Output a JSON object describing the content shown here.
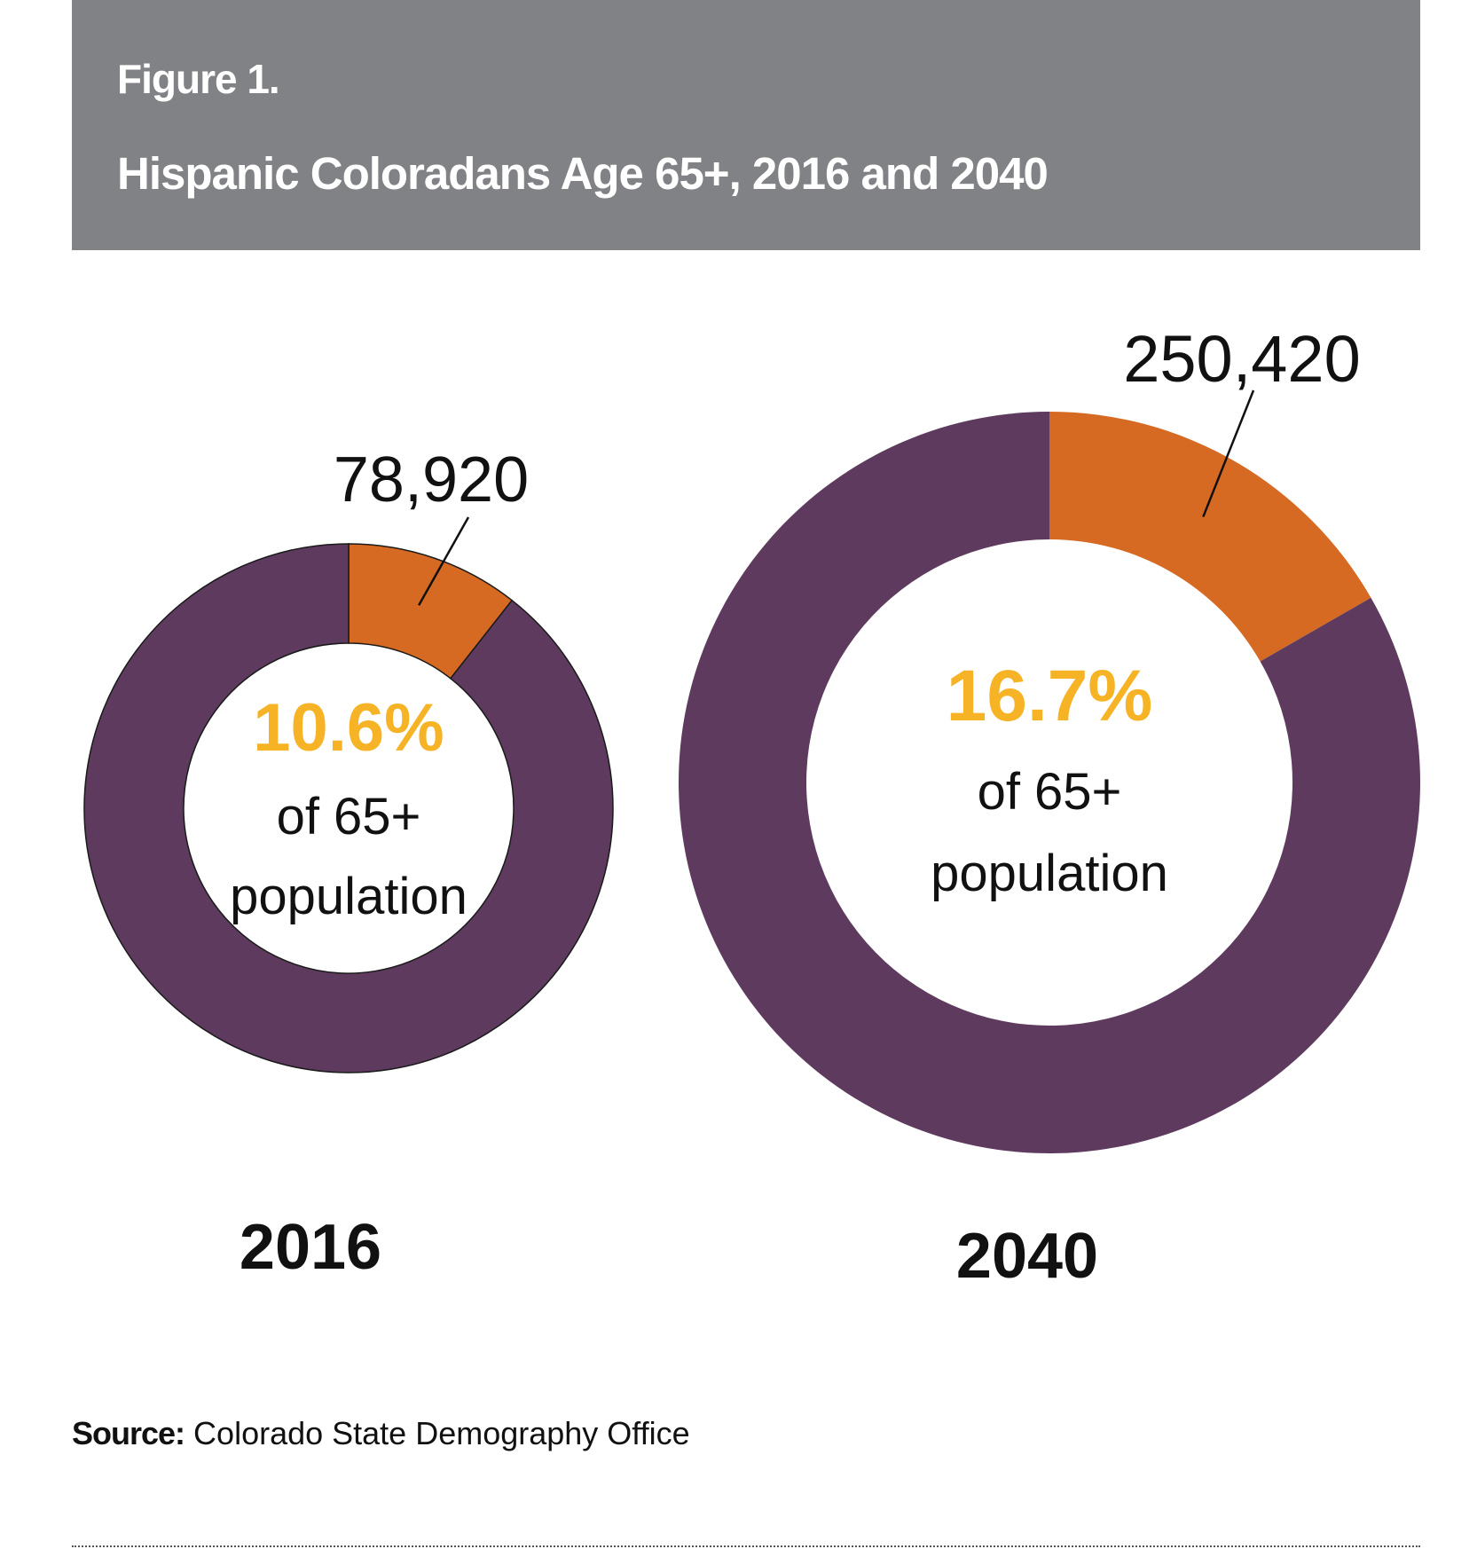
{
  "header": {
    "figure_label": "Figure 1.",
    "title": "Hispanic Coloradans Age 65+, 2016 and 2040"
  },
  "chart_data": [
    {
      "type": "pie",
      "variant": "donut",
      "year": "2016",
      "count_label": "78,920",
      "percent_label": "10.6%",
      "center_text": [
        "of 65+",
        "population"
      ],
      "slices": [
        {
          "share": 10.6,
          "color": "#d66a22"
        },
        {
          "share": 89.4,
          "color": "#5e3b5e"
        }
      ]
    },
    {
      "type": "pie",
      "variant": "donut",
      "year": "2040",
      "count_label": "250,420",
      "percent_label": "16.7%",
      "center_text": [
        "of 65+",
        "population"
      ],
      "slices": [
        {
          "share": 16.7,
          "color": "#d66a22"
        },
        {
          "share": 83.3,
          "color": "#5e3b5e"
        }
      ]
    }
  ],
  "colors": {
    "header_bg": "#818285",
    "highlight": "#d66a22",
    "remainder": "#5e3b5e",
    "percent_text": "#f5b325"
  },
  "source": {
    "label": "Source:",
    "text": " Colorado State Demography Office"
  }
}
